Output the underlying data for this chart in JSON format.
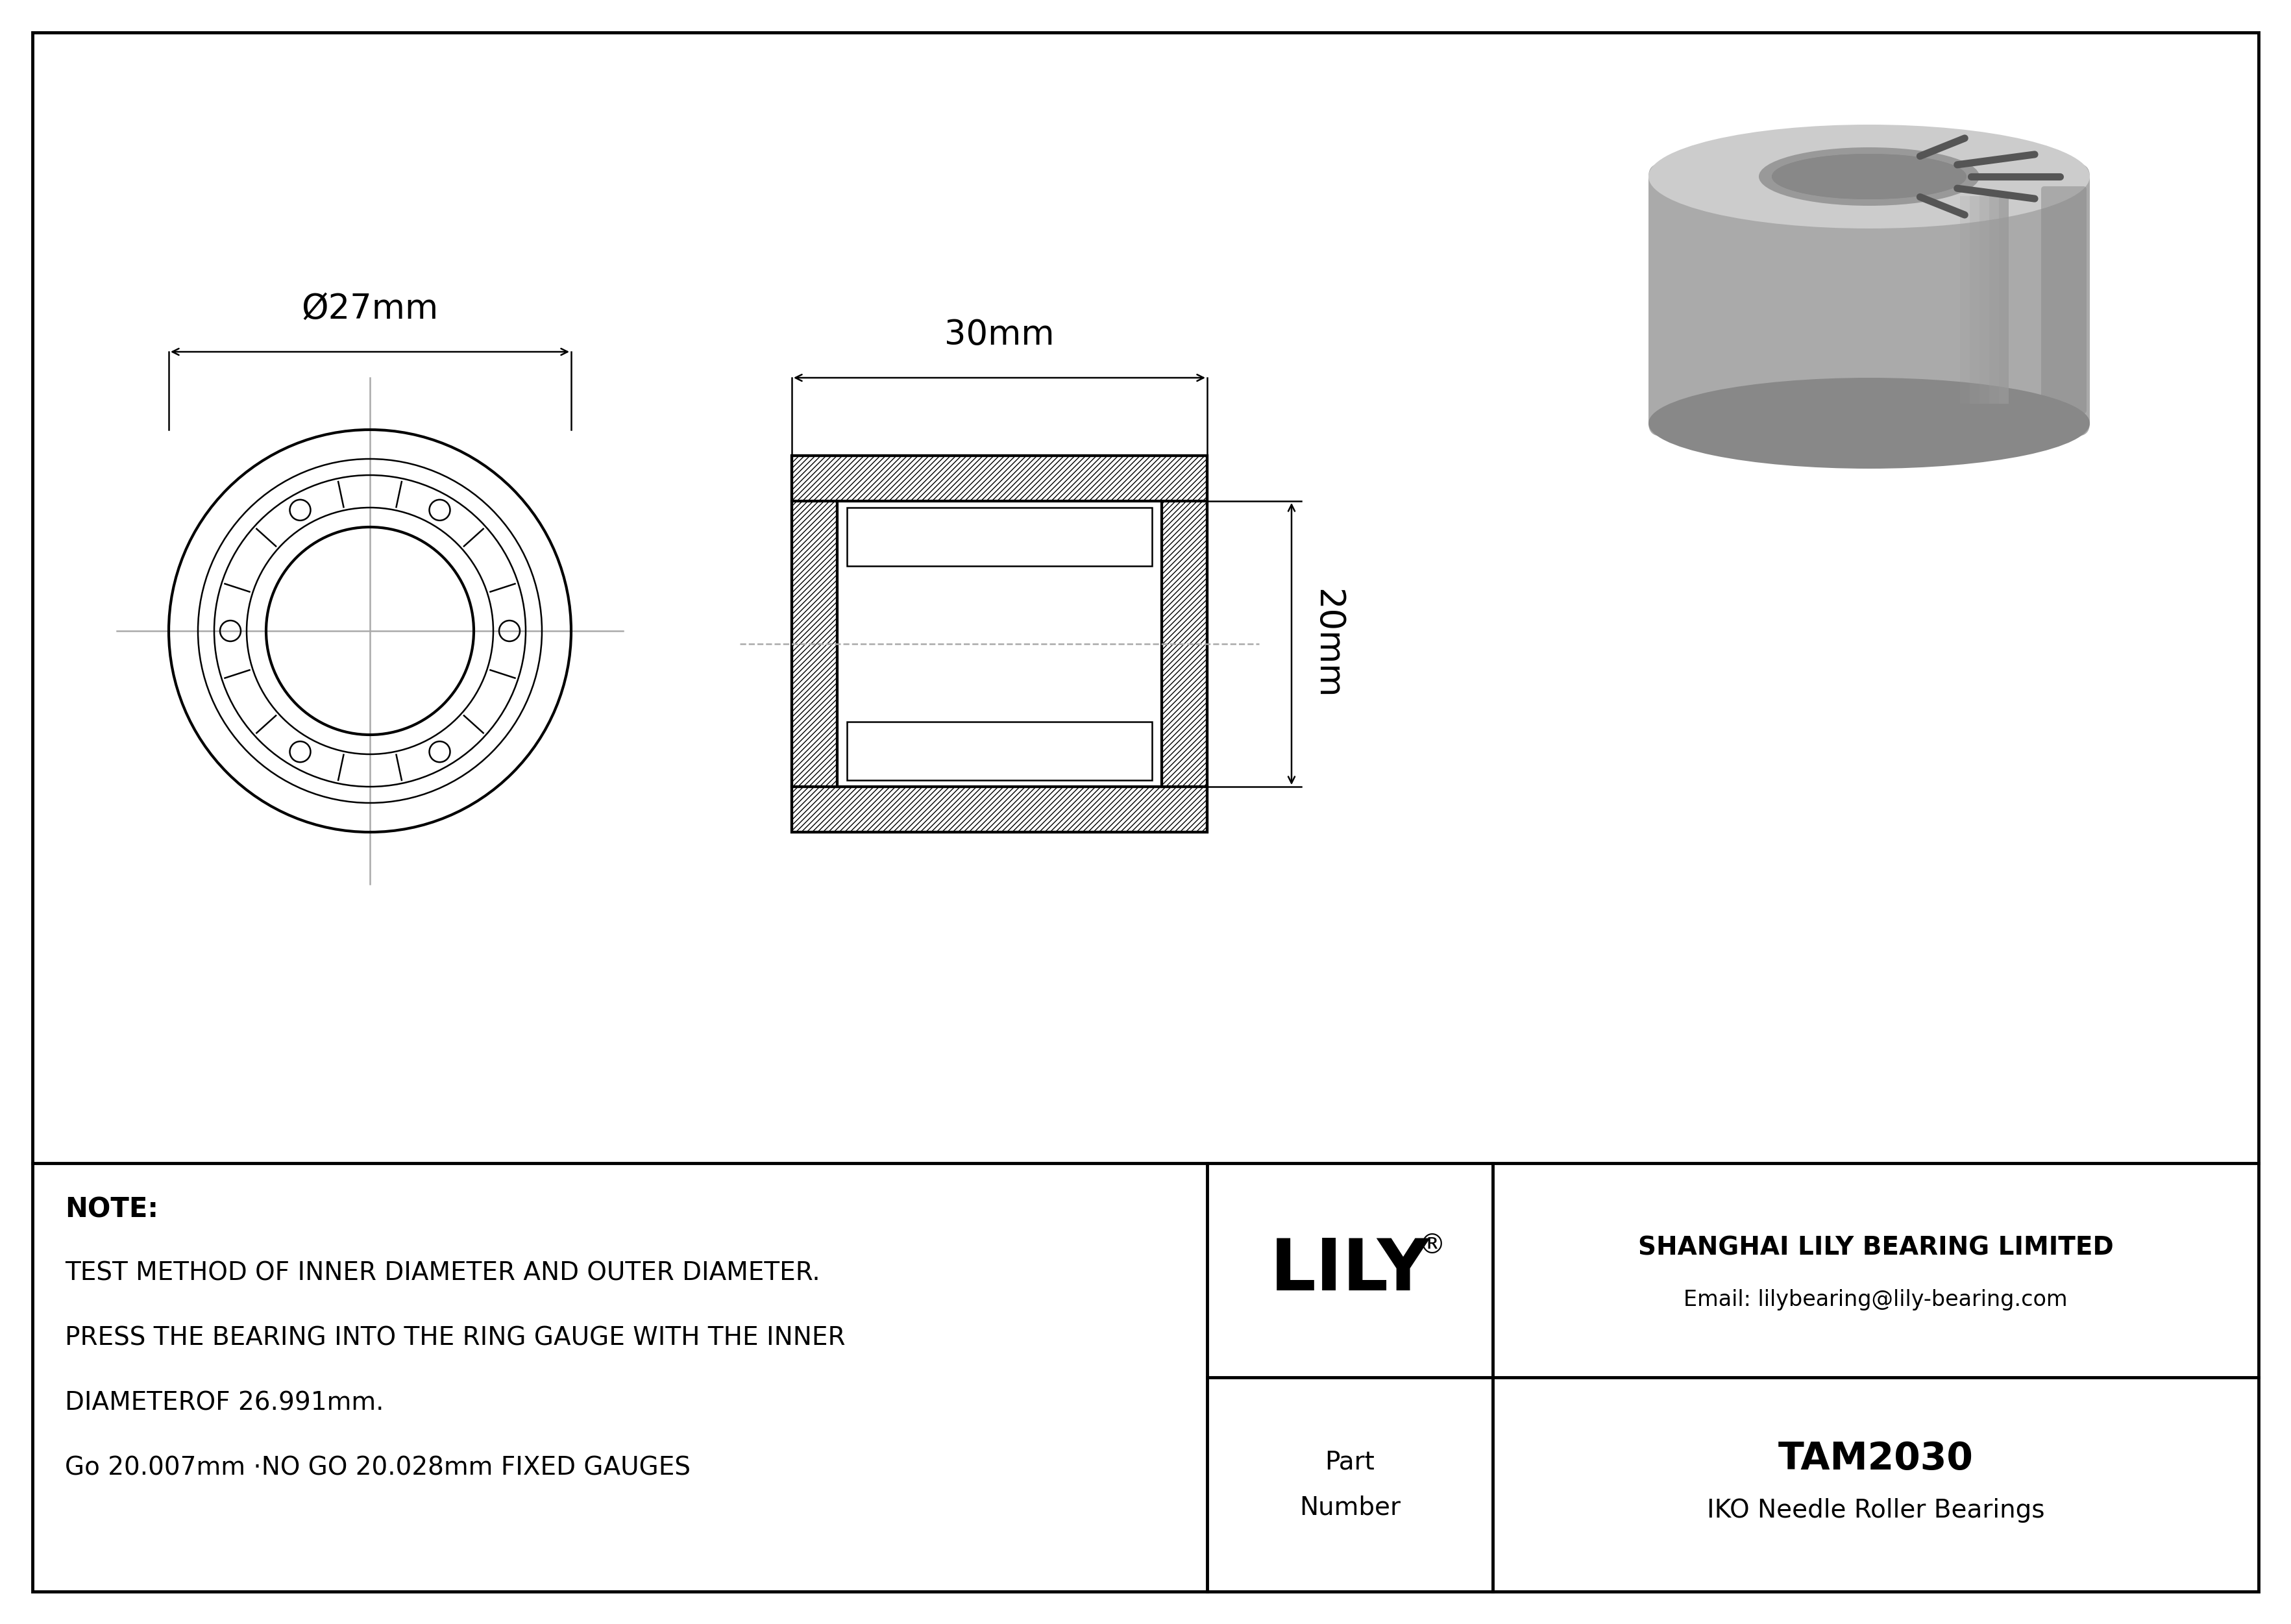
{
  "bg_color": "#ffffff",
  "line_color": "#000000",
  "border_color": "#000000",
  "note_lines": [
    "NOTE:",
    "TEST METHOD OF INNER DIAMETER AND OUTER DIAMETER.",
    "PRESS THE BEARING INTO THE RING GAUGE WITH THE INNER",
    "DIAMETEROF 26.991mm.",
    "Go 20.007mm ·NO GO 20.028mm FIXED GAUGES"
  ],
  "company_name": "SHANGHAI LILY BEARING LIMITED",
  "company_email": "Email: lilybearing@lily-bearing.com",
  "part_number": "TAM2030",
  "part_type": "IKO Needle Roller Bearings",
  "lily_logo": "LILY",
  "dim_label_27": "Ø27mm",
  "dim_label_30": "30mm",
  "dim_label_20": "20mm",
  "hatch_color": "#000000",
  "drawing_line_color": "#000000",
  "dim_color": "#000000",
  "cross_color": "#aaaaaa",
  "gray_dark": "#888888",
  "gray_mid": "#aaaaaa",
  "gray_light": "#cccccc",
  "gray_body": "#b0b0b0"
}
